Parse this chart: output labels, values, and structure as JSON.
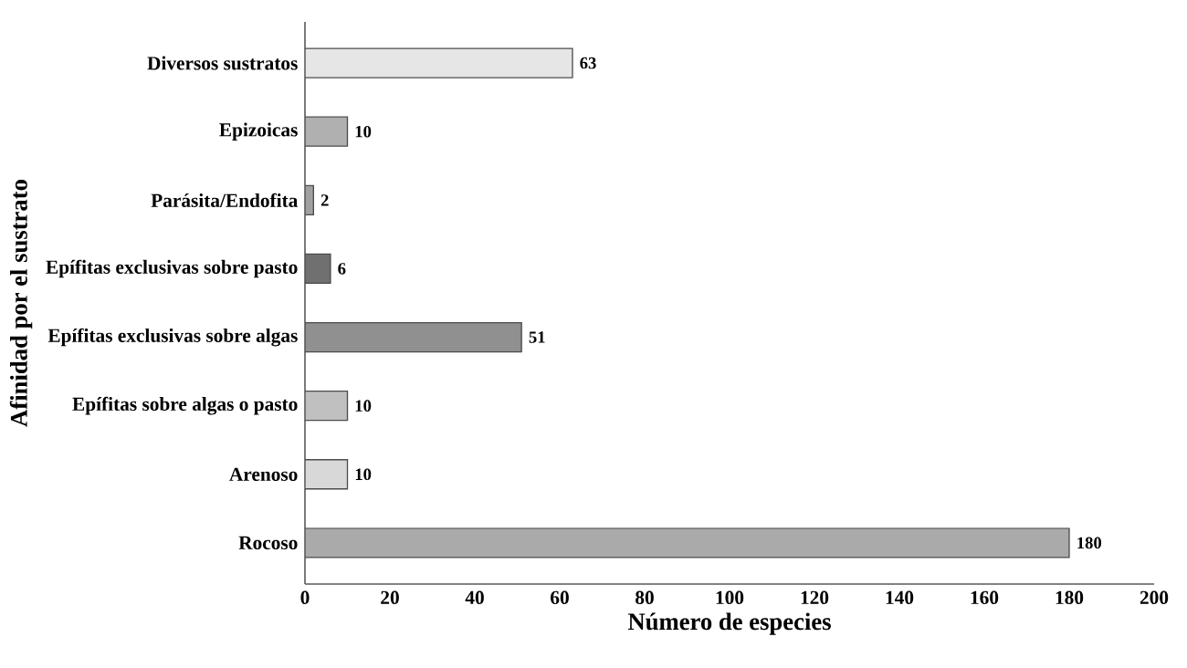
{
  "chart_data": {
    "type": "bar",
    "orientation": "horizontal",
    "xlabel": "Número de especies",
    "ylabel": "Afinidad por el sustrato",
    "categories": [
      "Diversos sustratos",
      "Epizoicas",
      "Parásita/Endofita",
      "Epífitas exclusivas sobre pasto",
      "Epífitas exclusivas sobre algas",
      "Epífitas sobre algas o pasto",
      "Arenoso",
      "Rocoso"
    ],
    "values": [
      63,
      10,
      2,
      6,
      51,
      10,
      10,
      180
    ],
    "colors": [
      "#e6e6e6",
      "#b0b0b0",
      "#a0a0a0",
      "#707070",
      "#909090",
      "#c0c0c0",
      "#d8d8d8",
      "#aaaaaa"
    ],
    "xlim": [
      0,
      200
    ],
    "xticks": [
      0,
      20,
      40,
      60,
      80,
      100,
      120,
      140,
      160,
      180,
      200
    ],
    "data_labels": true
  }
}
